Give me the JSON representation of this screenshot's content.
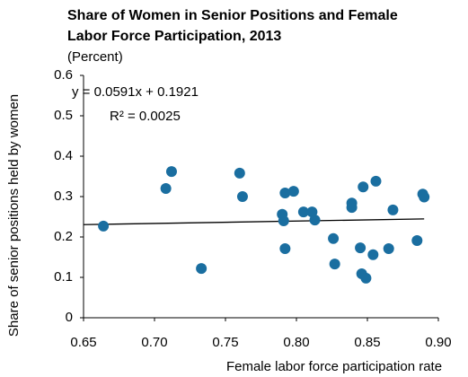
{
  "chart_data": {
    "type": "scatter",
    "title": [
      "Share of Women in Senior Positions and Female",
      "Labor Force Participation, 2013"
    ],
    "subtitle": "(Percent)",
    "x_label": "Female labor force participation rate",
    "y_label": "Share of senior positions held by women",
    "annotations": [
      "y = 0.0591x + 0.1921",
      "R² = 0.0025"
    ],
    "trendline": {
      "slope": 0.0591,
      "intercept": 0.1921,
      "color": "#000000"
    },
    "color": "#1a6ea0",
    "x": [
      0.664,
      0.708,
      0.712,
      0.733,
      0.76,
      0.762,
      0.79,
      0.792,
      0.791,
      0.792,
      0.798,
      0.805,
      0.811,
      0.813,
      0.826,
      0.827,
      0.839,
      0.839,
      0.847,
      0.856,
      0.845,
      0.846,
      0.849,
      0.854,
      0.865,
      0.868,
      0.885,
      0.889,
      0.89
    ],
    "values": [
      0.227,
      0.32,
      0.362,
      0.122,
      0.358,
      0.3,
      0.256,
      0.309,
      0.24,
      0.171,
      0.313,
      0.262,
      0.262,
      0.242,
      0.196,
      0.133,
      0.284,
      0.273,
      0.324,
      0.338,
      0.173,
      0.109,
      0.098,
      0.156,
      0.171,
      0.267,
      0.191,
      0.306,
      0.299
    ],
    "xlim": [
      0.65,
      0.9
    ],
    "xticks": [
      0.65,
      {
        "value": 0.7,
        "label": "0.70"
      },
      0.75,
      {
        "value": 0.8,
        "label": "0.80"
      },
      0.85,
      {
        "value": 0.9,
        "label": "0.90"
      }
    ],
    "ylim": [
      0,
      0.6
    ],
    "yticks": [
      0,
      0.1,
      0.2,
      0.3,
      0.4,
      0.5,
      0.6
    ],
    "grid": false
  }
}
